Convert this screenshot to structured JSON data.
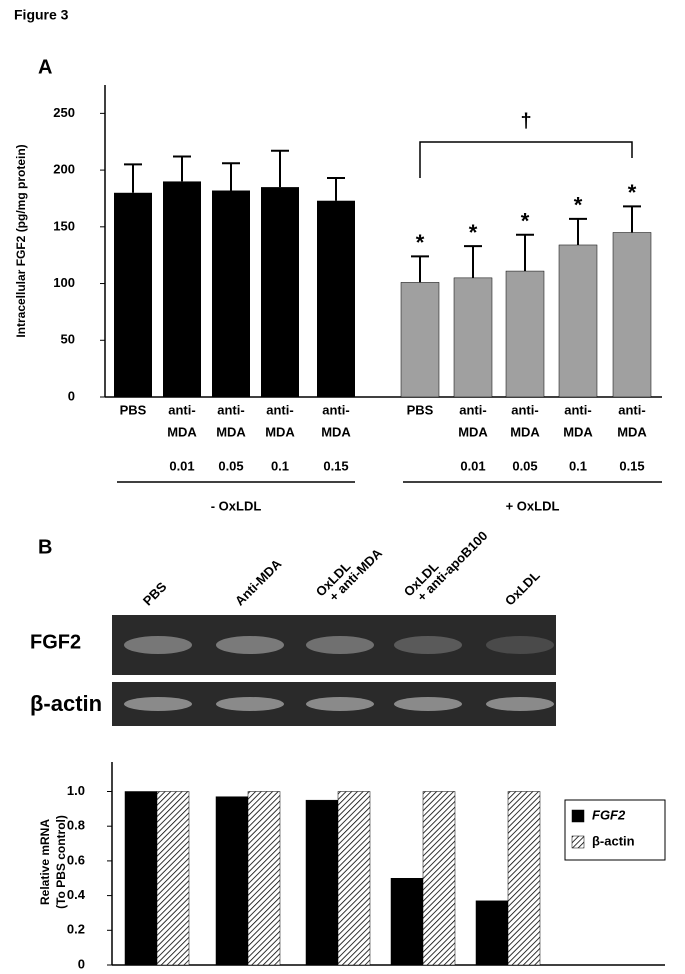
{
  "figure_title": "Figure 3",
  "gel": {
    "panel": "B",
    "lanes": [
      "PBS",
      "Anti-MDA",
      [
        "OxLDL",
        "+ anti-MDA"
      ],
      [
        "OxLDL",
        "+ anti-apoB100"
      ],
      "OxLDL"
    ],
    "rows": [
      "FGF2",
      "β-actin"
    ]
  },
  "chart_data": [
    {
      "type": "bar",
      "panel": "A",
      "y_label": "Intracellular FGF2 (pg/mg protein)",
      "ylim": [
        0,
        275
      ],
      "yticks": [
        0,
        50,
        100,
        150,
        200,
        250
      ],
      "groups": [
        {
          "label": "- OxLDL",
          "color": "#000000",
          "categories": [
            [
              "PBS"
            ],
            [
              "anti-",
              "MDA"
            ],
            [
              "anti-",
              "MDA"
            ],
            [
              "anti-",
              "MDA"
            ],
            [
              "anti-",
              "MDA"
            ]
          ],
          "concentrations": [
            null,
            0.01,
            0.05,
            0.1,
            0.15
          ],
          "values": [
            180,
            190,
            182,
            185,
            173
          ],
          "errors": [
            25,
            22,
            24,
            32,
            20
          ],
          "marks": [
            null,
            null,
            null,
            null,
            null
          ]
        },
        {
          "label": "+ OxLDL",
          "color": "#a0a0a0",
          "categories": [
            [
              "PBS"
            ],
            [
              "anti-",
              "MDA"
            ],
            [
              "anti-",
              "MDA"
            ],
            [
              "anti-",
              "MDA"
            ],
            [
              "anti-",
              "MDA"
            ]
          ],
          "concentrations": [
            null,
            0.01,
            0.05,
            0.1,
            0.15
          ],
          "values": [
            101,
            105,
            111,
            134,
            145
          ],
          "errors": [
            23,
            28,
            32,
            23,
            23
          ],
          "marks": [
            "*",
            "*",
            "*",
            "*",
            "*"
          ]
        }
      ],
      "bracket_label": "†"
    },
    {
      "type": "grouped-bar",
      "y_label": [
        "Relative mRNA",
        "(To PBS control)"
      ],
      "ylim": [
        0,
        1.17
      ],
      "yticks": [
        0,
        0.2,
        0.4,
        0.6,
        0.8,
        {
          "value": 1,
          "label": "1.0"
        }
      ],
      "categories": [
        null,
        null,
        null,
        null,
        null
      ],
      "legend": "right",
      "series": [
        {
          "name": "FGF2",
          "color": "#000000",
          "values": [
            1.0,
            0.97,
            0.95,
            0.5,
            0.37
          ]
        },
        {
          "name": "β-actin",
          "color": "hatch",
          "values": [
            1,
            1,
            1,
            1,
            1
          ]
        }
      ]
    }
  ]
}
